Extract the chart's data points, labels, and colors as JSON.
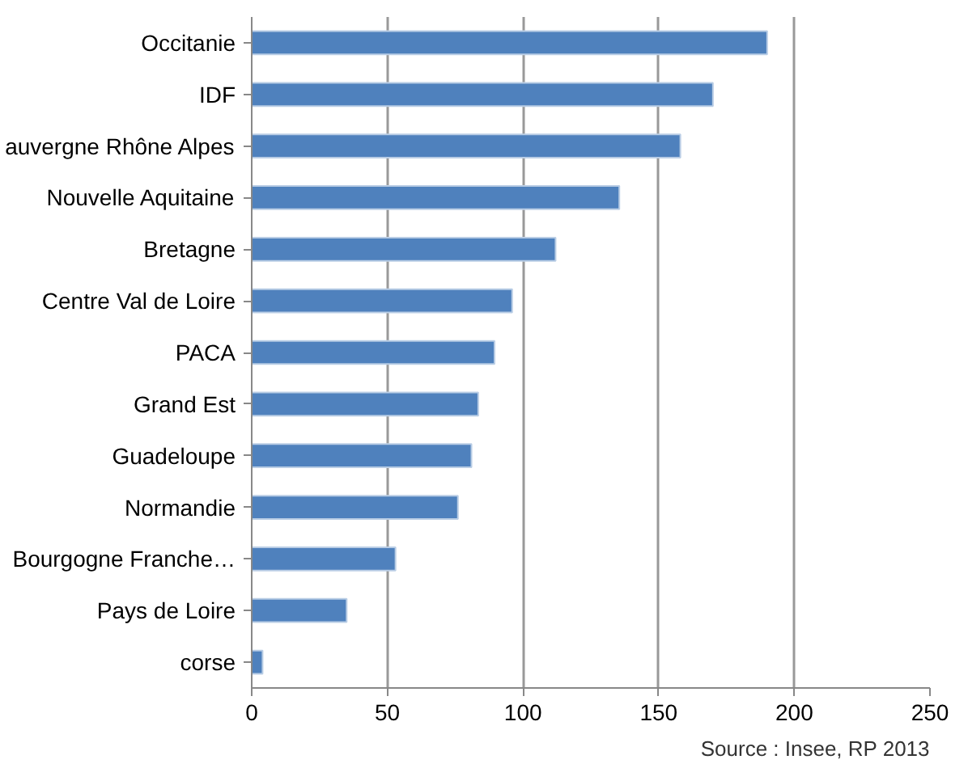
{
  "chart_data": {
    "type": "bar",
    "orientation": "horizontal",
    "categories": [
      "Occitanie",
      "IDF",
      "auvergne Rhône Alpes",
      "Nouvelle Aquitaine",
      "Bretagne",
      "Centre Val de Loire",
      "PACA",
      "Grand Est",
      "Guadeloupe",
      "Normandie",
      "Bourgogne Franche…",
      "Pays de Loire",
      "corse"
    ],
    "values": [
      190,
      170,
      158,
      135.5,
      112,
      96,
      89.5,
      83.5,
      81,
      76,
      53,
      35,
      4
    ],
    "color": "#4f81bd",
    "xlim": [
      0,
      250
    ],
    "xticks": [
      0,
      50,
      100,
      150,
      200,
      250
    ],
    "grid": "x",
    "annotations": [
      "Source : Insee, RP 2013"
    ]
  }
}
